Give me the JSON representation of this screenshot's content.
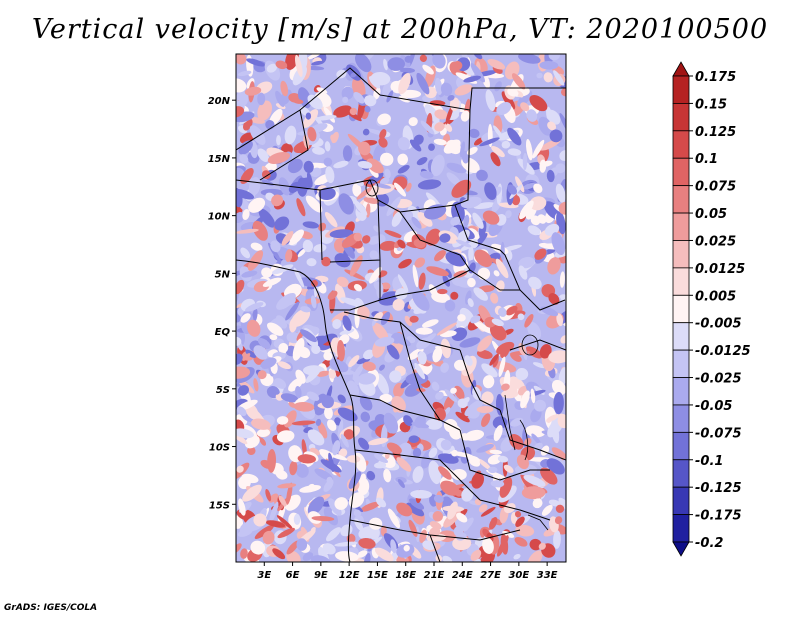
{
  "title": "Vertical velocity [m/s] at 200hPa, VT: 2020100500",
  "footer": "GrADS: IGES/COLA",
  "map": {
    "lon_range": [
      0,
      35
    ],
    "lat_range": [
      -20,
      24
    ],
    "lat_ticks": [
      {
        "value": 20,
        "label": "20N"
      },
      {
        "value": 15,
        "label": "15N"
      },
      {
        "value": 10,
        "label": "10N"
      },
      {
        "value": 5,
        "label": "5N"
      },
      {
        "value": 0,
        "label": "EQ"
      },
      {
        "value": -5,
        "label": "5S"
      },
      {
        "value": -10,
        "label": "10S"
      },
      {
        "value": -15,
        "label": "15S"
      }
    ],
    "lon_ticks": [
      {
        "value": 3,
        "label": "3E"
      },
      {
        "value": 6,
        "label": "6E"
      },
      {
        "value": 9,
        "label": "9E"
      },
      {
        "value": 12,
        "label": "12E"
      },
      {
        "value": 15,
        "label": "15E"
      },
      {
        "value": 18,
        "label": "18E"
      },
      {
        "value": 21,
        "label": "21E"
      },
      {
        "value": 24,
        "label": "24E"
      },
      {
        "value": 27,
        "label": "27E"
      },
      {
        "value": 30,
        "label": "30E"
      },
      {
        "value": 33,
        "label": "33E"
      }
    ]
  },
  "colorbar": {
    "labels": [
      "0.175",
      "0.15",
      "0.125",
      "0.1",
      "0.075",
      "0.05",
      "0.025",
      "0.0125",
      "0.005",
      "-0.005",
      "-0.0125",
      "-0.025",
      "-0.05",
      "-0.075",
      "-0.1",
      "-0.125",
      "-0.175",
      "-0.2"
    ],
    "colors": [
      "#a01414",
      "#b52222",
      "#c73535",
      "#d54a4a",
      "#e06464",
      "#e88080",
      "#ef9c9c",
      "#f5bdbd",
      "#fadcdc",
      "#fff4f4",
      "#dcdcf8",
      "#c4c4f4",
      "#aaaaee",
      "#8e8ee4",
      "#7272d8",
      "#5656c8",
      "#3838b4",
      "#2020a0",
      "#0e0e88"
    ]
  }
}
